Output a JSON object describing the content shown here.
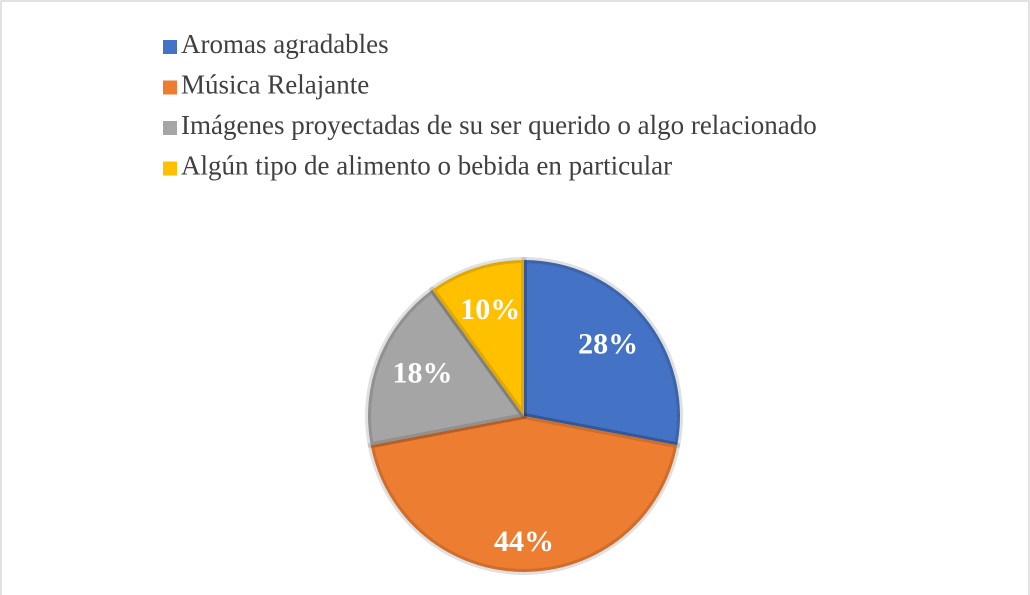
{
  "chart_data": {
    "type": "pie",
    "categories": [
      "Aromas agradables",
      "Música Relajante",
      "Imágenes proyectadas de su ser querido o algo relacionado",
      "Algún tipo de alimento o bebida en particular"
    ],
    "values": [
      28,
      44,
      18,
      10
    ],
    "value_labels": [
      "28%",
      "44%",
      "18%",
      "10%"
    ],
    "colors": [
      "#4472c4",
      "#ed7d31",
      "#a5a5a5",
      "#ffc000"
    ],
    "legend": "top"
  }
}
